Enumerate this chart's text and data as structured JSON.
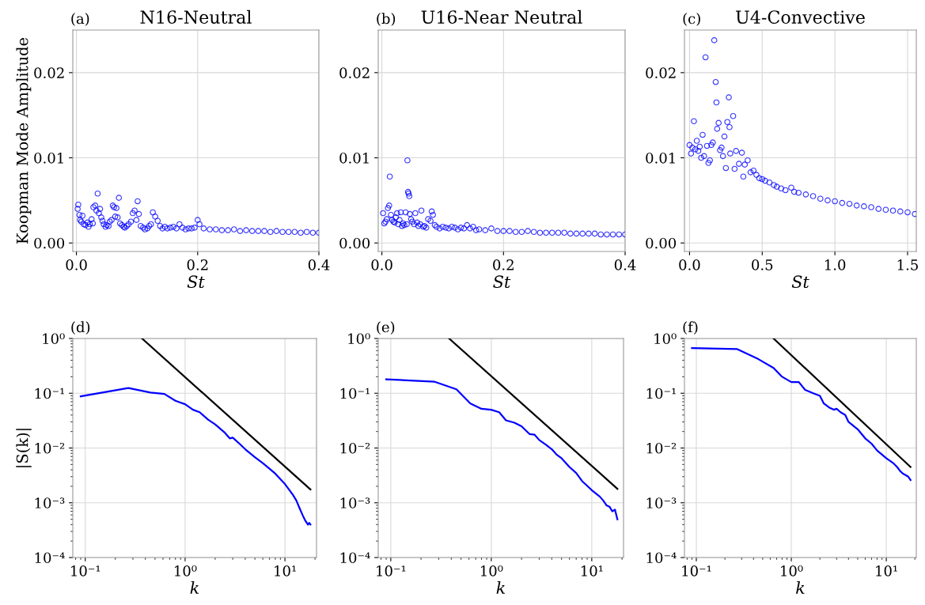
{
  "chart_data": [
    {
      "type": "scatter",
      "title": "N16-Neutral",
      "xlabel": "St",
      "ylabel": "Koopman Mode Amplitude",
      "annotations": [
        "(a)"
      ],
      "xlim": [
        -0.006,
        0.4
      ],
      "ylim": [
        -0.001,
        0.025
      ],
      "xticks": [
        {
          "value": 0,
          "label": "0.0"
        },
        0.2,
        0.4
      ],
      "yticks": [
        {
          "value": 0,
          "label": "0.00"
        },
        {
          "value": 0.01,
          "label": "0.01"
        },
        {
          "value": 0.02,
          "label": "0.02"
        }
      ],
      "grid": true,
      "marker": "circle",
      "series": [
        {
          "color": "#0000ff",
          "x": [
            0.002,
            0.003,
            0.005,
            0.006,
            0.008,
            0.01,
            0.012,
            0.015,
            0.018,
            0.02,
            0.022,
            0.025,
            0.027,
            0.028,
            0.031,
            0.033,
            0.035,
            0.037,
            0.039,
            0.041,
            0.043,
            0.045,
            0.048,
            0.05,
            0.053,
            0.055,
            0.058,
            0.06,
            0.062,
            0.064,
            0.066,
            0.068,
            0.07,
            0.072,
            0.075,
            0.078,
            0.08,
            0.083,
            0.086,
            0.09,
            0.093,
            0.096,
            0.099,
            0.101,
            0.103,
            0.106,
            0.11,
            0.113,
            0.117,
            0.12,
            0.123,
            0.126,
            0.13,
            0.134,
            0.138,
            0.142,
            0.146,
            0.15,
            0.155,
            0.16,
            0.165,
            0.17,
            0.175,
            0.18,
            0.185,
            0.19,
            0.195,
            0.2,
            0.203,
            0.21,
            0.22,
            0.23,
            0.24,
            0.25,
            0.26,
            0.27,
            0.28,
            0.29,
            0.3,
            0.31,
            0.32,
            0.33,
            0.34,
            0.35,
            0.36,
            0.37,
            0.38,
            0.39,
            0.4
          ],
          "values": [
            0.004,
            0.0045,
            0.0033,
            0.0027,
            0.0025,
            0.0032,
            0.0022,
            0.0021,
            0.0024,
            0.0019,
            0.0022,
            0.0028,
            0.0023,
            0.0042,
            0.0044,
            0.0038,
            0.0058,
            0.0035,
            0.004,
            0.003,
            0.0026,
            0.0022,
            0.0019,
            0.0021,
            0.002,
            0.0025,
            0.0027,
            0.0044,
            0.0042,
            0.0031,
            0.0041,
            0.003,
            0.0053,
            0.0023,
            0.0021,
            0.0019,
            0.0018,
            0.002,
            0.0022,
            0.0025,
            0.0035,
            0.0038,
            0.0027,
            0.0049,
            0.0034,
            0.002,
            0.0018,
            0.0016,
            0.0017,
            0.002,
            0.0022,
            0.0036,
            0.0031,
            0.0026,
            0.002,
            0.0017,
            0.0019,
            0.0017,
            0.0018,
            0.0019,
            0.0017,
            0.0022,
            0.0018,
            0.0016,
            0.0017,
            0.0017,
            0.0018,
            0.0027,
            0.0022,
            0.0017,
            0.0016,
            0.0016,
            0.0015,
            0.0015,
            0.0016,
            0.0014,
            0.0015,
            0.0014,
            0.0014,
            0.0014,
            0.0013,
            0.0014,
            0.0013,
            0.0013,
            0.0013,
            0.0012,
            0.0013,
            0.0012,
            0.0012
          ]
        }
      ]
    },
    {
      "type": "scatter",
      "title": "U16-Near Neutral",
      "xlabel": "St",
      "annotations": [
        "(b)"
      ],
      "xlim": [
        -0.006,
        0.4
      ],
      "ylim": [
        -0.001,
        0.025
      ],
      "xticks": [
        {
          "value": 0,
          "label": "0.0"
        },
        0.2,
        0.4
      ],
      "yticks": [
        {
          "value": 0,
          "label": "0.00"
        },
        {
          "value": 0.01,
          "label": "0.01"
        },
        {
          "value": 0.02,
          "label": "0.02"
        }
      ],
      "grid": true,
      "marker": "circle",
      "series": [
        {
          "color": "#0000ff",
          "x": [
            0.002,
            0.004,
            0.006,
            0.008,
            0.01,
            0.012,
            0.013,
            0.015,
            0.017,
            0.019,
            0.021,
            0.023,
            0.025,
            0.027,
            0.029,
            0.031,
            0.033,
            0.035,
            0.037,
            0.039,
            0.041,
            0.042,
            0.043,
            0.044,
            0.045,
            0.046,
            0.048,
            0.05,
            0.053,
            0.055,
            0.058,
            0.06,
            0.063,
            0.065,
            0.068,
            0.07,
            0.073,
            0.076,
            0.08,
            0.082,
            0.084,
            0.087,
            0.09,
            0.095,
            0.1,
            0.105,
            0.11,
            0.115,
            0.12,
            0.125,
            0.13,
            0.135,
            0.14,
            0.145,
            0.15,
            0.155,
            0.16,
            0.17,
            0.18,
            0.19,
            0.2,
            0.21,
            0.22,
            0.23,
            0.24,
            0.25,
            0.26,
            0.27,
            0.28,
            0.29,
            0.3,
            0.31,
            0.32,
            0.33,
            0.34,
            0.35,
            0.36,
            0.37,
            0.38,
            0.39,
            0.4
          ],
          "values": [
            0.0035,
            0.0023,
            0.0025,
            0.0028,
            0.0041,
            0.0044,
            0.0078,
            0.0033,
            0.0027,
            0.0025,
            0.0024,
            0.003,
            0.0035,
            0.0022,
            0.0027,
            0.0036,
            0.002,
            0.0023,
            0.0021,
            0.0036,
            0.0022,
            0.0097,
            0.006,
            0.0058,
            0.0055,
            0.0034,
            0.0028,
            0.0025,
            0.0022,
            0.0035,
            0.0024,
            0.002,
            0.0022,
            0.0038,
            0.0019,
            0.002,
            0.0018,
            0.0028,
            0.0026,
            0.0037,
            0.0033,
            0.0021,
            0.0019,
            0.0017,
            0.0019,
            0.0018,
            0.0017,
            0.0019,
            0.0018,
            0.0016,
            0.0018,
            0.0017,
            0.0021,
            0.0017,
            0.0019,
            0.0015,
            0.0016,
            0.0015,
            0.0017,
            0.0014,
            0.0014,
            0.0014,
            0.0013,
            0.0013,
            0.0014,
            0.0013,
            0.0012,
            0.0012,
            0.0012,
            0.0012,
            0.0012,
            0.0011,
            0.0011,
            0.0011,
            0.0011,
            0.0011,
            0.001,
            0.001,
            0.001,
            0.001,
            0.001
          ]
        }
      ]
    },
    {
      "type": "scatter",
      "title": "U4-Convective",
      "xlabel": "St",
      "annotations": [
        "(c)"
      ],
      "xlim": [
        -0.035,
        1.56
      ],
      "ylim": [
        -0.001,
        0.025
      ],
      "xticks": [
        {
          "value": 0,
          "label": "0.0"
        },
        0.5,
        {
          "value": 1,
          "label": "1.0"
        },
        1.5
      ],
      "yticks": [
        {
          "value": 0,
          "label": "0.00"
        },
        {
          "value": 0.01,
          "label": "0.01"
        },
        {
          "value": 0.02,
          "label": "0.02"
        }
      ],
      "grid": true,
      "marker": "circle",
      "series": [
        {
          "color": "#0000ff",
          "x": [
            0.0,
            0.01,
            0.02,
            0.03,
            0.04,
            0.05,
            0.06,
            0.07,
            0.08,
            0.09,
            0.1,
            0.11,
            0.12,
            0.13,
            0.14,
            0.15,
            0.16,
            0.17,
            0.18,
            0.185,
            0.19,
            0.2,
            0.21,
            0.22,
            0.23,
            0.24,
            0.25,
            0.26,
            0.27,
            0.275,
            0.28,
            0.3,
            0.31,
            0.32,
            0.34,
            0.36,
            0.37,
            0.38,
            0.4,
            0.42,
            0.44,
            0.46,
            0.48,
            0.5,
            0.52,
            0.55,
            0.58,
            0.6,
            0.63,
            0.66,
            0.7,
            0.72,
            0.75,
            0.8,
            0.85,
            0.9,
            0.95,
            1.0,
            1.05,
            1.1,
            1.15,
            1.2,
            1.25,
            1.3,
            1.35,
            1.4,
            1.45,
            1.5,
            1.55
          ],
          "values": [
            0.0115,
            0.0105,
            0.0112,
            0.0143,
            0.011,
            0.012,
            0.0108,
            0.0113,
            0.01,
            0.0127,
            0.0102,
            0.0218,
            0.0114,
            0.0094,
            0.0097,
            0.0115,
            0.0118,
            0.0238,
            0.0189,
            0.0165,
            0.0134,
            0.0141,
            0.0109,
            0.0112,
            0.0102,
            0.0125,
            0.0088,
            0.0142,
            0.0171,
            0.0136,
            0.0105,
            0.0149,
            0.0087,
            0.0108,
            0.0093,
            0.0106,
            0.0078,
            0.0092,
            0.0097,
            0.0083,
            0.0085,
            0.008,
            0.0076,
            0.0075,
            0.0073,
            0.0071,
            0.0068,
            0.0066,
            0.0064,
            0.0062,
            0.0065,
            0.006,
            0.0059,
            0.0057,
            0.0055,
            0.0052,
            0.005,
            0.0049,
            0.0047,
            0.0046,
            0.0044,
            0.0043,
            0.0042,
            0.004,
            0.0039,
            0.0038,
            0.0037,
            0.0036,
            0.0034
          ]
        }
      ]
    },
    {
      "type": "line",
      "xlabel": "k",
      "ylabel": "|S(k)|",
      "annotations": [
        "(d)"
      ],
      "log": "xy",
      "xlim": [
        0.075,
        20.7
      ],
      "ylim": [
        0.0001,
        1
      ],
      "xticks": [
        {
          "value": 0.1,
          "label": "10⁻¹"
        },
        {
          "value": 1,
          "label": "10⁰"
        },
        {
          "value": 10,
          "label": "10¹"
        }
      ],
      "yticks": [
        {
          "value": 0.0001,
          "label": "10⁻⁴"
        },
        {
          "value": 0.001,
          "label": "10⁻³"
        },
        {
          "value": 0.01,
          "label": "10⁻²"
        },
        {
          "value": 0.1,
          "label": "10⁻¹"
        },
        {
          "value": 1,
          "label": "10⁰"
        }
      ],
      "grid": true,
      "series": [
        {
          "color": "#0000ff",
          "x": [
            0.09,
            0.27,
            0.45,
            0.62,
            0.8,
            1.0,
            1.2,
            1.4,
            1.7,
            2.0,
            2.5,
            2.8,
            3.0,
            3.5,
            4.0,
            5.0,
            6.0,
            7.0,
            8.0,
            10,
            12,
            13,
            14,
            15,
            16,
            17,
            17.5,
            18
          ],
          "values": [
            0.088,
            0.125,
            0.103,
            0.097,
            0.073,
            0.063,
            0.05,
            0.045,
            0.033,
            0.027,
            0.019,
            0.015,
            0.0155,
            0.012,
            0.0095,
            0.0068,
            0.0053,
            0.0042,
            0.0034,
            0.0022,
            0.0014,
            0.0011,
            0.0008,
            0.0006,
            0.00047,
            0.0004,
            0.00043,
            0.0004
          ]
        },
        {
          "color": "#000000",
          "x": [
            0.37,
            18
          ],
          "values": [
            1,
            0.00175
          ]
        }
      ]
    },
    {
      "type": "line",
      "xlabel": "k",
      "annotations": [
        "(e)"
      ],
      "log": "xy",
      "xlim": [
        0.075,
        20.7
      ],
      "ylim": [
        0.0001,
        1
      ],
      "xticks": [
        {
          "value": 0.1,
          "label": "10⁻¹"
        },
        {
          "value": 1,
          "label": "10⁰"
        },
        {
          "value": 10,
          "label": "10¹"
        }
      ],
      "yticks": [
        {
          "value": 0.0001,
          "label": "10⁻⁴"
        },
        {
          "value": 0.001,
          "label": "10⁻³"
        },
        {
          "value": 0.01,
          "label": "10⁻²"
        },
        {
          "value": 0.1,
          "label": "10⁻¹"
        },
        {
          "value": 1,
          "label": "10⁰"
        }
      ],
      "grid": true,
      "series": [
        {
          "color": "#0000ff",
          "x": [
            0.09,
            0.27,
            0.45,
            0.62,
            0.8,
            1.0,
            1.2,
            1.4,
            1.7,
            2.0,
            2.4,
            2.7,
            3.0,
            3.5,
            4.0,
            4.5,
            5.0,
            6.0,
            7.0,
            8.0,
            10,
            12,
            13,
            14,
            15,
            16,
            17,
            18
          ],
          "values": [
            0.18,
            0.163,
            0.118,
            0.065,
            0.052,
            0.05,
            0.045,
            0.032,
            0.029,
            0.025,
            0.018,
            0.0175,
            0.014,
            0.0115,
            0.0095,
            0.0075,
            0.0065,
            0.0045,
            0.0035,
            0.0025,
            0.0017,
            0.0013,
            0.0011,
            0.0009,
            0.00085,
            0.0007,
            0.00075,
            0.0005
          ]
        },
        {
          "color": "#000000",
          "x": [
            0.38,
            18
          ],
          "values": [
            1,
            0.0018
          ]
        }
      ]
    },
    {
      "type": "line",
      "xlabel": "k",
      "annotations": [
        "(f)"
      ],
      "log": "xy",
      "xlim": [
        0.075,
        20.7
      ],
      "ylim": [
        0.0001,
        1
      ],
      "xticks": [
        {
          "value": 0.1,
          "label": "10⁻¹"
        },
        {
          "value": 1,
          "label": "10⁰"
        },
        {
          "value": 10,
          "label": "10¹"
        }
      ],
      "yticks": [
        {
          "value": 0.0001,
          "label": "10⁻⁴"
        },
        {
          "value": 0.001,
          "label": "10⁻³"
        },
        {
          "value": 0.01,
          "label": "10⁻²"
        },
        {
          "value": 0.1,
          "label": "10⁻¹"
        },
        {
          "value": 1,
          "label": "10⁰"
        }
      ],
      "grid": true,
      "series": [
        {
          "color": "#0000ff",
          "x": [
            0.09,
            0.27,
            0.45,
            0.65,
            0.8,
            1.0,
            1.2,
            1.4,
            1.7,
            2.0,
            2.2,
            2.5,
            2.8,
            3.0,
            3.3,
            3.7,
            4.0,
            5.0,
            6.0,
            7.0,
            8.0,
            10,
            12,
            13,
            14,
            15,
            16,
            17,
            18
          ],
          "values": [
            0.67,
            0.64,
            0.42,
            0.29,
            0.2,
            0.16,
            0.16,
            0.115,
            0.1,
            0.09,
            0.065,
            0.055,
            0.05,
            0.052,
            0.045,
            0.04,
            0.03,
            0.022,
            0.015,
            0.012,
            0.009,
            0.0065,
            0.0052,
            0.0045,
            0.0038,
            0.0034,
            0.0032,
            0.003,
            0.0026
          ]
        },
        {
          "color": "#000000",
          "x": [
            0.65,
            18
          ],
          "values": [
            1,
            0.0045
          ]
        }
      ]
    }
  ]
}
